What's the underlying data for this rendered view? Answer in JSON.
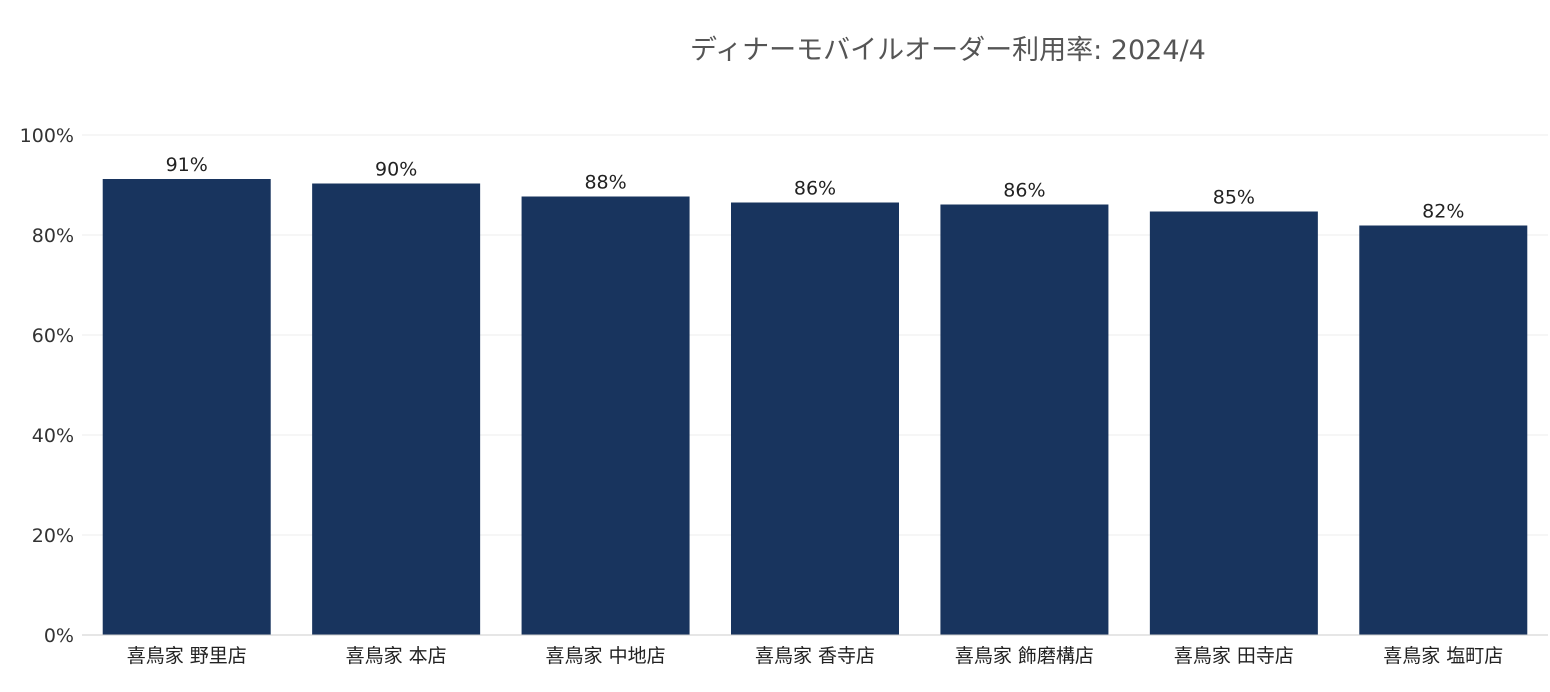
{
  "chart_data": {
    "type": "bar",
    "title": "ディナーモバイルオーダー利用率: 2024/4",
    "xlabel": "",
    "ylabel": "",
    "categories": [
      "喜鳥家 野里店",
      "喜鳥家 本店",
      "喜鳥家 中地店",
      "喜鳥家 香寺店",
      "喜鳥家 飾磨構店",
      "喜鳥家 田寺店",
      "喜鳥家 塩町店"
    ],
    "values": [
      91.2,
      90.3,
      87.7,
      86.5,
      86.1,
      84.7,
      81.9
    ],
    "data_labels": [
      "91%",
      "90%",
      "88%",
      "86%",
      "86%",
      "85%",
      "82%"
    ],
    "ylim": [
      0,
      100
    ],
    "yticks": [
      0,
      20,
      40,
      60,
      80,
      100
    ],
    "ytick_labels": [
      "0%",
      "20%",
      "40%",
      "60%",
      "80%",
      "100%"
    ],
    "grid": true,
    "legend": "none",
    "bar_color": "#18345e",
    "grid_color": "#ececec"
  }
}
